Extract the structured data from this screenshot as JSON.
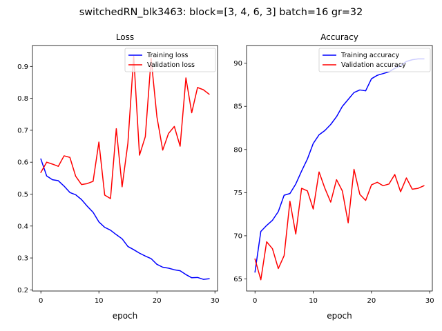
{
  "title": "switchedRN_blk3463: block=[3, 4, 6, 3] batch=16 gr=32",
  "chart_data": [
    {
      "type": "line",
      "title": "Loss",
      "xlabel": "epoch",
      "ylabel": "",
      "xlim": [
        -1.45,
        30.45
      ],
      "ylim": [
        0.1965,
        0.9655
      ],
      "xticks": [
        0,
        10,
        20,
        30
      ],
      "yticks": [
        0.2,
        0.3,
        0.4,
        0.5,
        0.6,
        0.7,
        0.8,
        0.9
      ],
      "ytick_labels": [
        "0.2",
        "0.3",
        "0.4",
        "0.5",
        "0.6",
        "0.7",
        "0.8",
        "0.9"
      ],
      "legend": "top-right",
      "grid": false,
      "x": [
        0,
        1,
        2,
        3,
        4,
        5,
        6,
        7,
        8,
        9,
        10,
        11,
        12,
        13,
        14,
        15,
        16,
        17,
        18,
        19,
        20,
        21,
        22,
        23,
        24,
        25,
        26,
        27,
        28,
        29
      ],
      "series": [
        {
          "name": "Training loss",
          "color": "#0000ff",
          "values": [
            0.61,
            0.557,
            0.545,
            0.542,
            0.525,
            0.505,
            0.498,
            0.483,
            0.462,
            0.443,
            0.413,
            0.396,
            0.387,
            0.373,
            0.36,
            0.336,
            0.326,
            0.315,
            0.306,
            0.298,
            0.28,
            0.271,
            0.268,
            0.263,
            0.26,
            0.248,
            0.238,
            0.239,
            0.233,
            0.235
          ]
        },
        {
          "name": "Validation loss",
          "color": "#ff0000",
          "values": [
            0.568,
            0.6,
            0.594,
            0.587,
            0.62,
            0.615,
            0.556,
            0.53,
            0.533,
            0.54,
            0.663,
            0.497,
            0.486,
            0.705,
            0.523,
            0.66,
            0.932,
            0.622,
            0.68,
            0.925,
            0.742,
            0.638,
            0.69,
            0.712,
            0.65,
            0.864,
            0.755,
            0.834,
            0.827,
            0.813
          ]
        }
      ]
    },
    {
      "type": "line",
      "title": "Accuracy",
      "xlabel": "epoch",
      "ylabel": "",
      "xlim": [
        -1.45,
        30.45
      ],
      "ylim": [
        63.6,
        92.05
      ],
      "xticks": [
        0,
        10,
        20,
        30
      ],
      "yticks": [
        65,
        70,
        75,
        80,
        85,
        90
      ],
      "ytick_labels": [
        "65",
        "70",
        "75",
        "80",
        "85",
        "90"
      ],
      "legend": "top-right",
      "grid": false,
      "x": [
        0,
        1,
        2,
        3,
        4,
        5,
        6,
        7,
        8,
        9,
        10,
        11,
        12,
        13,
        14,
        15,
        16,
        17,
        18,
        19,
        20,
        21,
        22,
        23,
        24,
        25,
        26,
        27,
        28,
        29
      ],
      "series": [
        {
          "name": "Training accuracy",
          "color": "#0000ff",
          "values": [
            65.8,
            70.5,
            71.2,
            71.8,
            72.8,
            74.7,
            74.9,
            76.0,
            77.5,
            78.9,
            80.7,
            81.7,
            82.2,
            82.9,
            83.8,
            85.0,
            85.8,
            86.6,
            86.9,
            86.8,
            88.2,
            88.6,
            88.8,
            89.0,
            89.4,
            89.7,
            90.2,
            90.4,
            90.5,
            90.5
          ]
        },
        {
          "name": "Validation accuracy",
          "color": "#ff0000",
          "values": [
            67.3,
            64.9,
            69.3,
            68.5,
            66.2,
            67.7,
            74.0,
            70.2,
            75.5,
            75.2,
            73.1,
            77.4,
            75.5,
            73.9,
            76.5,
            75.2,
            71.5,
            77.7,
            74.8,
            74.1,
            75.9,
            76.2,
            75.8,
            76.0,
            77.1,
            75.1,
            76.7,
            75.4,
            75.5,
            75.8
          ]
        }
      ]
    }
  ]
}
